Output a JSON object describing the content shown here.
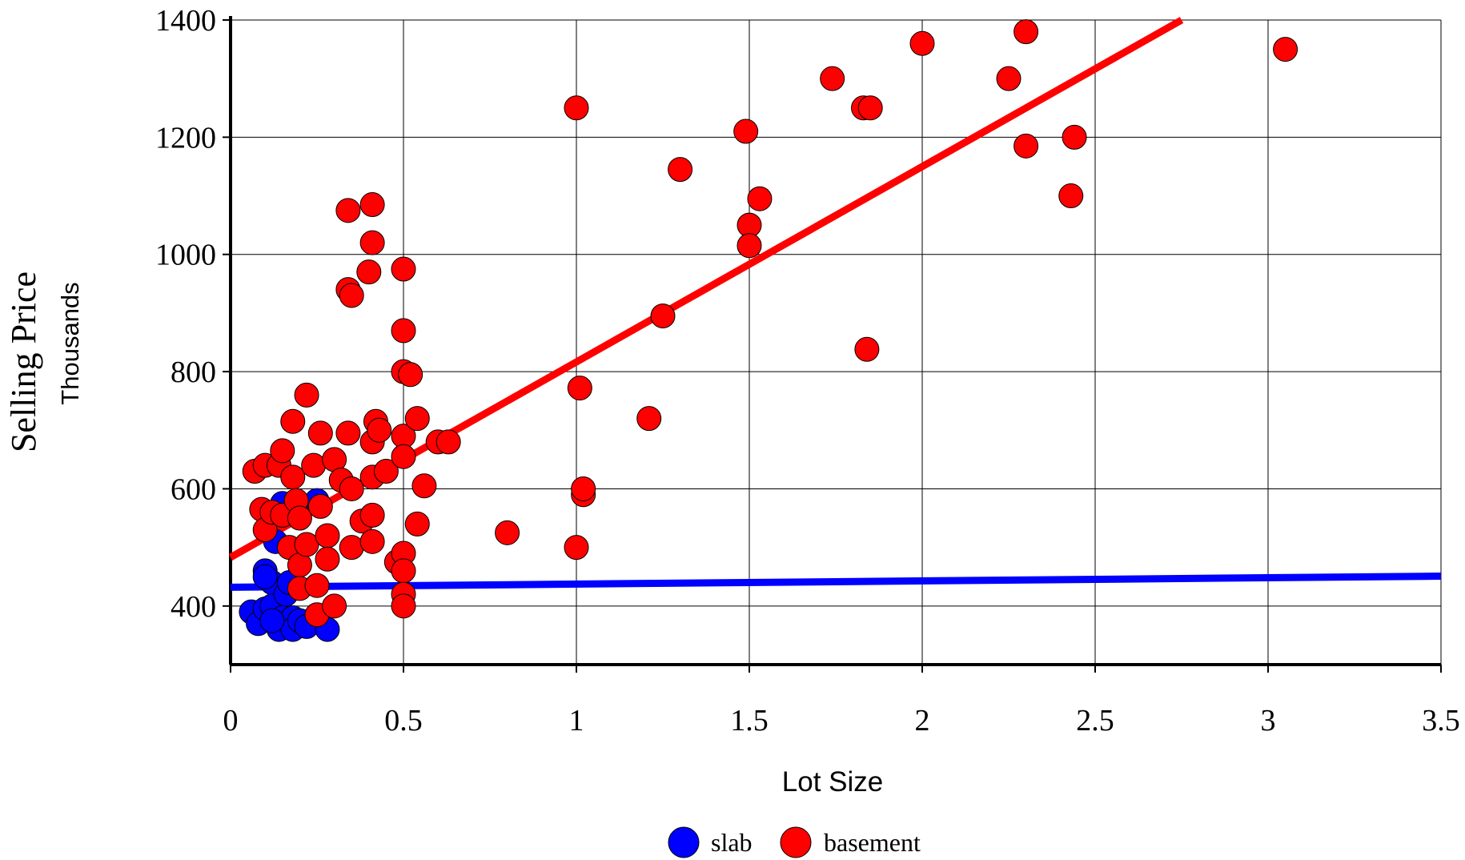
{
  "chart_data": {
    "type": "scatter",
    "title": "",
    "xlabel": "Lot Size",
    "ylabel": "Selling Price",
    "ylabel_sub": "Thousands",
    "xlim": [
      0,
      3.5
    ],
    "ylim": [
      300,
      1400
    ],
    "xticks": [
      "0",
      "0.5",
      "1",
      "1.5",
      "2",
      "2.5",
      "3",
      "3.5"
    ],
    "yticks": [
      "400",
      "600",
      "800",
      "1000",
      "1200",
      "1400"
    ],
    "grid": true,
    "legend_position": "bottom",
    "series": [
      {
        "name": "slab",
        "color": "#0000ff",
        "points": [
          [
            0.06,
            390
          ],
          [
            0.08,
            370
          ],
          [
            0.1,
            460
          ],
          [
            0.1,
            395
          ],
          [
            0.12,
            440
          ],
          [
            0.12,
            400
          ],
          [
            0.13,
            510
          ],
          [
            0.14,
            360
          ],
          [
            0.15,
            380
          ],
          [
            0.16,
            420
          ],
          [
            0.17,
            440
          ],
          [
            0.18,
            380
          ],
          [
            0.18,
            360
          ],
          [
            0.2,
            375
          ],
          [
            0.22,
            365
          ],
          [
            0.15,
            575
          ],
          [
            0.25,
            580
          ],
          [
            0.28,
            360
          ],
          [
            0.12,
            375
          ],
          [
            0.1,
            450
          ]
        ],
        "trend": [
          [
            0,
            432
          ],
          [
            3.5,
            451
          ]
        ]
      },
      {
        "name": "basement",
        "color": "#ff0000",
        "points": [
          [
            0.07,
            630
          ],
          [
            0.09,
            565
          ],
          [
            0.1,
            640
          ],
          [
            0.1,
            530
          ],
          [
            0.12,
            560
          ],
          [
            0.14,
            640
          ],
          [
            0.15,
            665
          ],
          [
            0.15,
            555
          ],
          [
            0.17,
            500
          ],
          [
            0.18,
            715
          ],
          [
            0.18,
            620
          ],
          [
            0.19,
            580
          ],
          [
            0.2,
            550
          ],
          [
            0.2,
            470
          ],
          [
            0.2,
            430
          ],
          [
            0.22,
            760
          ],
          [
            0.22,
            505
          ],
          [
            0.24,
            640
          ],
          [
            0.25,
            435
          ],
          [
            0.25,
            385
          ],
          [
            0.26,
            695
          ],
          [
            0.26,
            570
          ],
          [
            0.28,
            520
          ],
          [
            0.28,
            480
          ],
          [
            0.3,
            650
          ],
          [
            0.3,
            400
          ],
          [
            0.32,
            615
          ],
          [
            0.34,
            1075
          ],
          [
            0.34,
            940
          ],
          [
            0.34,
            695
          ],
          [
            0.35,
            930
          ],
          [
            0.35,
            600
          ],
          [
            0.35,
            500
          ],
          [
            0.38,
            545
          ],
          [
            0.4,
            970
          ],
          [
            0.41,
            1085
          ],
          [
            0.41,
            1020
          ],
          [
            0.41,
            680
          ],
          [
            0.41,
            620
          ],
          [
            0.41,
            555
          ],
          [
            0.41,
            510
          ],
          [
            0.42,
            715
          ],
          [
            0.43,
            700
          ],
          [
            0.45,
            630
          ],
          [
            0.48,
            475
          ],
          [
            0.5,
            975
          ],
          [
            0.5,
            870
          ],
          [
            0.5,
            800
          ],
          [
            0.5,
            690
          ],
          [
            0.5,
            655
          ],
          [
            0.5,
            490
          ],
          [
            0.5,
            460
          ],
          [
            0.5,
            420
          ],
          [
            0.5,
            400
          ],
          [
            0.52,
            795
          ],
          [
            0.54,
            540
          ],
          [
            0.54,
            720
          ],
          [
            0.56,
            605
          ],
          [
            0.6,
            680
          ],
          [
            0.63,
            680
          ],
          [
            0.8,
            525
          ],
          [
            1.0,
            1250
          ],
          [
            1.0,
            500
          ],
          [
            1.01,
            772
          ],
          [
            1.02,
            590
          ],
          [
            1.02,
            600
          ],
          [
            1.21,
            720
          ],
          [
            1.25,
            895
          ],
          [
            1.3,
            1145
          ],
          [
            1.49,
            1210
          ],
          [
            1.5,
            1050
          ],
          [
            1.5,
            1015
          ],
          [
            1.53,
            1095
          ],
          [
            1.74,
            1300
          ],
          [
            1.83,
            1250
          ],
          [
            1.84,
            838
          ],
          [
            1.85,
            1250
          ],
          [
            2.0,
            1360
          ],
          [
            2.25,
            1300
          ],
          [
            2.3,
            1380
          ],
          [
            2.3,
            1185
          ],
          [
            2.43,
            1100
          ],
          [
            2.44,
            1200
          ],
          [
            3.05,
            1350
          ]
        ],
        "trend": [
          [
            0,
            483
          ],
          [
            2.75,
            1400
          ]
        ]
      }
    ]
  }
}
